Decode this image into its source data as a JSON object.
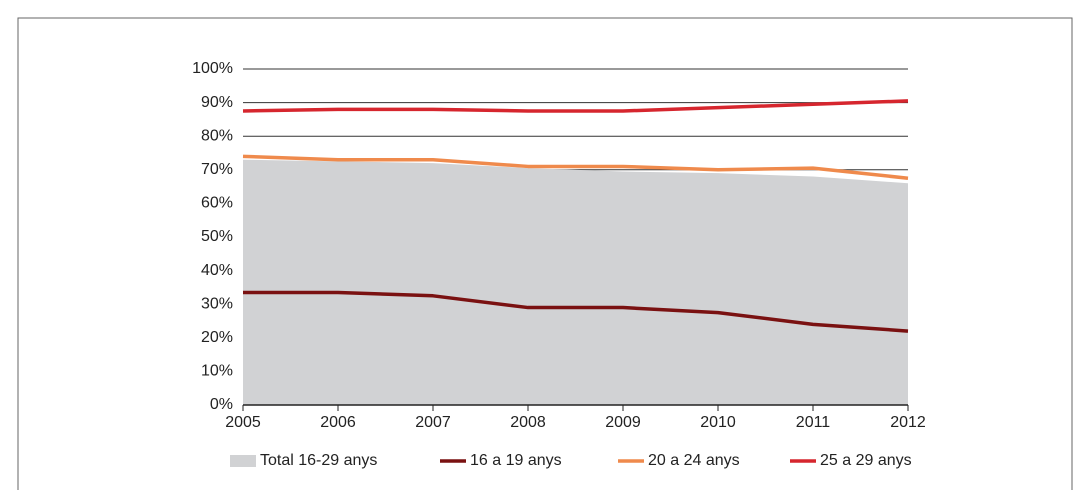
{
  "chart_data": {
    "type": "line",
    "x": [
      2005,
      2006,
      2007,
      2008,
      2009,
      2010,
      2011,
      2012
    ],
    "xlim": [
      2005,
      2012
    ],
    "xticks": [
      2005,
      2006,
      2007,
      2008,
      2009,
      2010,
      2011,
      2012
    ],
    "ylim": [
      0,
      100
    ],
    "yticks": [
      {
        "value": 0,
        "label": "0%"
      },
      {
        "value": 10,
        "label": "10%"
      },
      {
        "value": 20,
        "label": "20%"
      },
      {
        "value": 30,
        "label": "30%"
      },
      {
        "value": 40,
        "label": "40%"
      },
      {
        "value": 50,
        "label": "50%"
      },
      {
        "value": 60,
        "label": "60%"
      },
      {
        "value": 70,
        "label": "70%"
      },
      {
        "value": 80,
        "label": "80%"
      },
      {
        "value": 90,
        "label": "90%"
      },
      {
        "value": 100,
        "label": "100%"
      }
    ],
    "grid": true,
    "legend": "bottom",
    "series": [
      {
        "name": "Total 16-29 anys",
        "style": "area",
        "color": "#d1d2d4",
        "values": [
          73,
          72.5,
          72,
          70.5,
          69.5,
          69,
          68,
          66
        ]
      },
      {
        "name": "16 a 19 anys",
        "style": "line",
        "color": "#7a1111",
        "values": [
          33.5,
          33.5,
          32.5,
          29,
          29,
          27.5,
          24,
          22
        ]
      },
      {
        "name": "20 a 24 anys",
        "style": "line",
        "color": "#ef8a4c",
        "values": [
          74,
          73,
          73,
          71,
          71,
          70,
          70.5,
          67.5
        ]
      },
      {
        "name": "25 a 29 anys",
        "style": "line",
        "color": "#d6262e",
        "values": [
          87.5,
          88,
          88,
          87.5,
          87.5,
          88.5,
          89.5,
          90.5
        ]
      }
    ]
  }
}
